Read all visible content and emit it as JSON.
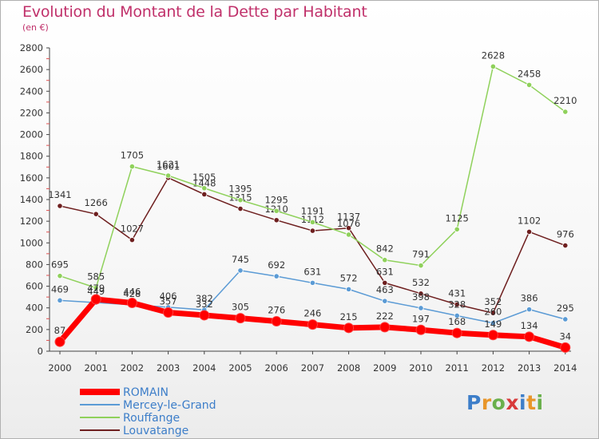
{
  "header": {
    "title": "Evolution du Montant de la Dette par Habitant",
    "unit": "(en €)"
  },
  "logo": {
    "text": "Proxiti",
    "colors": [
      "#3d7ec9",
      "#e8962a",
      "#6ab04c",
      "#d83a3a",
      "#3d7ec9",
      "#e8962a",
      "#6ab04c"
    ]
  },
  "chart_data": {
    "type": "line",
    "title": "Evolution du Montant de la Dette par Habitant",
    "subtitle": "(en €)",
    "xlabel": "",
    "ylabel": "",
    "x": [
      "2000",
      "2001",
      "2002",
      "2003",
      "2004",
      "2005",
      "2006",
      "2007",
      "2008",
      "2009",
      "2010",
      "2011",
      "2012",
      "2013",
      "2014"
    ],
    "ylim": [
      0,
      2800
    ],
    "yticks": [
      "0",
      "200",
      "400",
      "600",
      "800",
      "1000",
      "1200",
      "1400",
      "1600",
      "1800",
      "2000",
      "2200",
      "2400",
      "2600",
      "2800"
    ],
    "grid": false,
    "legend": "bottom-left",
    "series": [
      {
        "name": "Louvatange",
        "color": "#6e1f1f",
        "values": [
          1341,
          1266,
          1027,
          1601,
          1448,
          1315,
          1210,
          1112,
          1137,
          631,
          532,
          431,
          352,
          1102,
          976
        ]
      },
      {
        "name": "Rouffange",
        "color": "#8fd15b",
        "values": [
          695,
          585,
          1705,
          1621,
          1505,
          1395,
          1295,
          1191,
          1076,
          842,
          791,
          1125,
          2628,
          2458,
          2210
        ]
      },
      {
        "name": "Mercey-le-Grand",
        "color": "#5b9bd5",
        "values": [
          469,
          449,
          428,
          406,
          382,
          745,
          692,
          631,
          572,
          463,
          398,
          328,
          260,
          386,
          295
        ]
      },
      {
        "name": "ROMAIN",
        "color": "#ff0000",
        "values": [
          87,
          479,
          446,
          357,
          332,
          305,
          276,
          246,
          215,
          222,
          197,
          168,
          149,
          134,
          34
        ]
      }
    ]
  }
}
